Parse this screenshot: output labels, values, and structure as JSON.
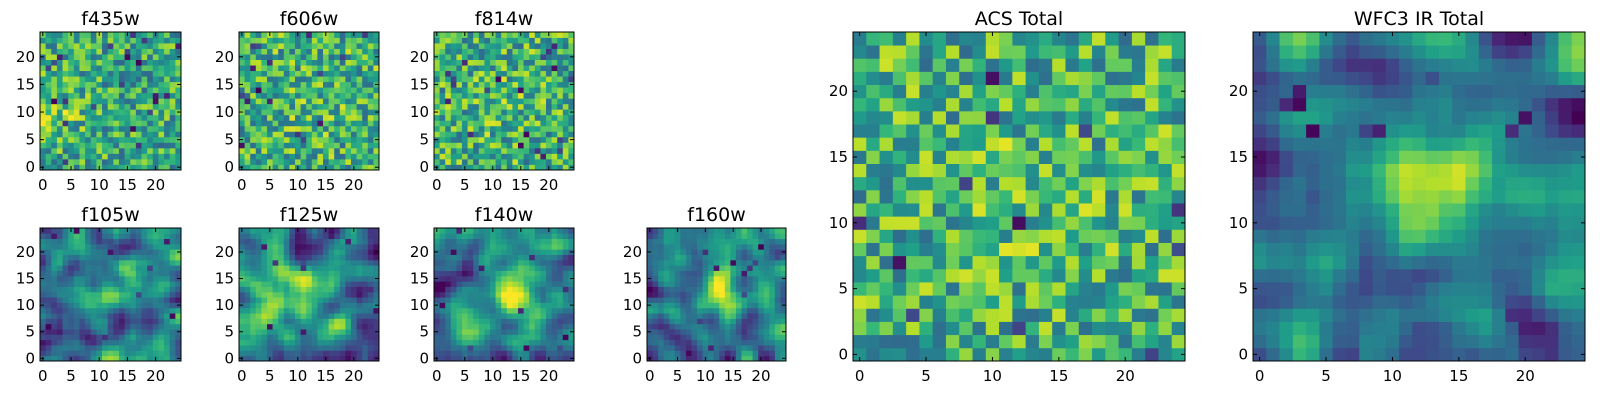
{
  "colormap": {
    "name": "viridis",
    "stops": [
      "#440154",
      "#482878",
      "#3e4989",
      "#31688e",
      "#26828e",
      "#1f9e89",
      "#35b779",
      "#6ece58",
      "#b5de2b",
      "#fde725"
    ]
  },
  "chart_data": [
    {
      "type": "heatmap",
      "title": "f435w",
      "grid_size": 25,
      "xlim": [
        0,
        24
      ],
      "ylim": [
        0,
        24
      ],
      "xticks": [
        0,
        5,
        10,
        15,
        20
      ],
      "yticks": [
        0,
        5,
        10,
        15,
        20
      ],
      "xlabel": "",
      "ylabel": "",
      "colormap": "viridis",
      "texture": "noise",
      "seed": 11,
      "source_offset": [
        -10,
        -2
      ],
      "source_sigma": 3.5,
      "source_amplitude": 0.18,
      "dark_pixels": 22
    },
    {
      "type": "heatmap",
      "title": "f606w",
      "grid_size": 25,
      "xlim": [
        0,
        24
      ],
      "ylim": [
        0,
        24
      ],
      "xticks": [
        0,
        5,
        10,
        15,
        20
      ],
      "yticks": [
        0,
        5,
        10,
        15,
        20
      ],
      "xlabel": "",
      "ylabel": "",
      "colormap": "viridis",
      "texture": "noise",
      "seed": 23,
      "source_offset": [
        0,
        0
      ],
      "source_sigma": 4,
      "source_amplitude": 0.05,
      "dark_pixels": 16
    },
    {
      "type": "heatmap",
      "title": "f814w",
      "grid_size": 25,
      "xlim": [
        0,
        24
      ],
      "ylim": [
        0,
        24
      ],
      "xticks": [
        0,
        5,
        10,
        15,
        20
      ],
      "yticks": [
        0,
        5,
        10,
        15,
        20
      ],
      "xlabel": "",
      "ylabel": "",
      "colormap": "viridis",
      "texture": "noise",
      "seed": 37,
      "source_offset": [
        0,
        0
      ],
      "source_sigma": 4,
      "source_amplitude": 0.05,
      "dark_pixels": 20
    },
    {
      "type": "heatmap",
      "title": "f105w",
      "grid_size": 25,
      "xlim": [
        0,
        24
      ],
      "ylim": [
        0,
        24
      ],
      "xticks": [
        0,
        5,
        10,
        15,
        20
      ],
      "yticks": [
        0,
        5,
        10,
        15,
        20
      ],
      "xlabel": "",
      "ylabel": "",
      "colormap": "viridis",
      "texture": "smooth",
      "seed": 41,
      "source_offset": [
        1,
        1
      ],
      "source_sigma": 3.5,
      "source_amplitude": 0.35,
      "dark_pixels": 10
    },
    {
      "type": "heatmap",
      "title": "f125w",
      "grid_size": 25,
      "xlim": [
        0,
        24
      ],
      "ylim": [
        0,
        24
      ],
      "xticks": [
        0,
        5,
        10,
        15,
        20
      ],
      "yticks": [
        0,
        5,
        10,
        15,
        20
      ],
      "xlabel": "",
      "ylabel": "",
      "colormap": "viridis",
      "texture": "smooth",
      "seed": 53,
      "source_offset": [
        -2,
        0
      ],
      "source_sigma": 3.5,
      "source_amplitude": 0.3,
      "dark_pixels": 10
    },
    {
      "type": "heatmap",
      "title": "f140w",
      "grid_size": 25,
      "xlim": [
        0,
        24
      ],
      "ylim": [
        0,
        24
      ],
      "xticks": [
        0,
        5,
        10,
        15,
        20
      ],
      "yticks": [
        0,
        5,
        10,
        15,
        20
      ],
      "xlabel": "",
      "ylabel": "",
      "colormap": "viridis",
      "texture": "smooth",
      "seed": 67,
      "source_offset": [
        2,
        1
      ],
      "source_sigma": 3,
      "source_amplitude": 0.5,
      "dark_pixels": 12
    },
    {
      "type": "heatmap",
      "title": "f160w",
      "grid_size": 25,
      "xlim": [
        0,
        24
      ],
      "ylim": [
        0,
        24
      ],
      "xticks": [
        0,
        5,
        10,
        15,
        20
      ],
      "yticks": [
        0,
        5,
        10,
        15,
        20
      ],
      "xlabel": "",
      "ylabel": "",
      "colormap": "viridis",
      "texture": "smooth",
      "seed": 79,
      "source_offset": [
        1,
        1
      ],
      "source_sigma": 2.8,
      "source_amplitude": 0.6,
      "dark_pixels": 12
    },
    {
      "type": "heatmap",
      "title": "ACS Total",
      "grid_size": 25,
      "xlim": [
        0,
        24
      ],
      "ylim": [
        0,
        24
      ],
      "xticks": [
        0,
        5,
        10,
        15,
        20
      ],
      "yticks": [
        0,
        5,
        10,
        15,
        20
      ],
      "xlabel": "",
      "ylabel": "",
      "colormap": "viridis",
      "texture": "noise",
      "seed": 97,
      "source_offset": [
        0,
        0
      ],
      "source_sigma": 4,
      "source_amplitude": 0.06,
      "dark_pixels": 12
    },
    {
      "type": "heatmap",
      "title": "WFC3 IR Total",
      "grid_size": 25,
      "xlim": [
        0,
        24
      ],
      "ylim": [
        0,
        24
      ],
      "xticks": [
        0,
        5,
        10,
        15,
        20
      ],
      "yticks": [
        0,
        5,
        10,
        15,
        20
      ],
      "xlabel": "",
      "ylabel": "",
      "colormap": "viridis",
      "texture": "smooth",
      "seed": 113,
      "source_offset": [
        1,
        1
      ],
      "source_sigma": 3,
      "source_amplitude": 0.45,
      "dark_pixels": 14
    }
  ]
}
